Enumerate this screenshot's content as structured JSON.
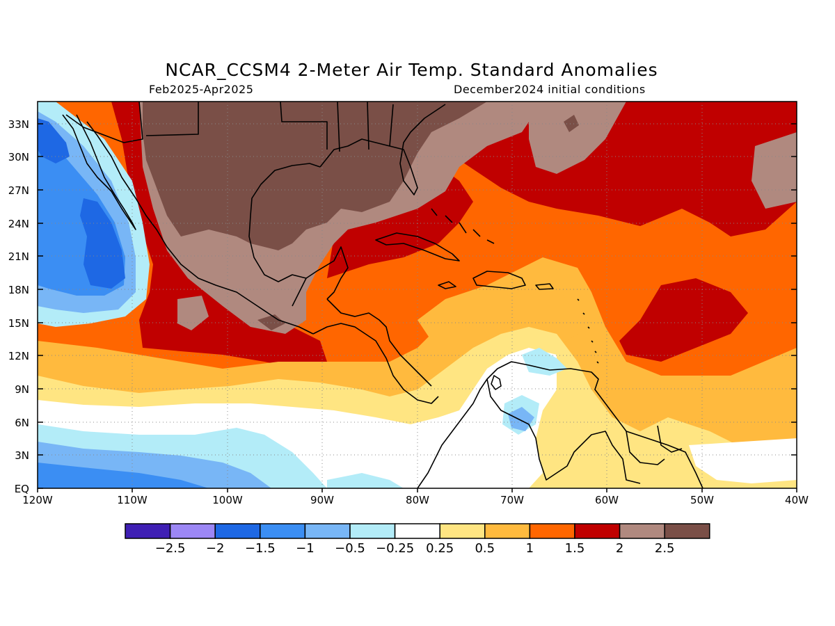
{
  "title": "NCAR_CCSM4 2-Meter Air Temp. Standard Anomalies",
  "subtitle_left": "Feb2025-Apr2025",
  "subtitle_right": "December2024 initial conditions",
  "map": {
    "lon_range": [
      -120,
      -40
    ],
    "lat_range": [
      0,
      35
    ],
    "x_ticks": [
      "120W",
      "110W",
      "100W",
      "90W",
      "80W",
      "70W",
      "60W",
      "50W",
      "40W"
    ],
    "y_ticks": [
      "EQ",
      "3N",
      "6N",
      "9N",
      "12N",
      "15N",
      "18N",
      "21N",
      "24N",
      "27N",
      "30N",
      "33N"
    ],
    "grid": "dotted"
  },
  "colorbar": {
    "colors": [
      "#3f1fb4",
      "#9c87f5",
      "#1e68e4",
      "#3b8ef3",
      "#78b6f6",
      "#b3ecf8",
      "#ffffff",
      "#ffe582",
      "#ffba3e",
      "#ff6600",
      "#c00000",
      "#b0897f",
      "#7a4f47"
    ],
    "labels": [
      "-2.5",
      "-2",
      "-1.5",
      "-1",
      "-0.5",
      "-0.25",
      "0.25",
      "0.5",
      "1",
      "1.5",
      "2",
      "2.5"
    ]
  },
  "colors": {
    "deep_brown": "#7a4f47",
    "light_brown": "#b0897f",
    "dark_red": "#c00000",
    "orange": "#ff6600",
    "light_orange": "#ffba3e",
    "yellow": "#ffe582",
    "white": "#ffffff",
    "pale_cyan": "#b3ecf8",
    "light_blue": "#78b6f6",
    "mid_blue": "#3b8ef3",
    "blue": "#1e68e4"
  }
}
